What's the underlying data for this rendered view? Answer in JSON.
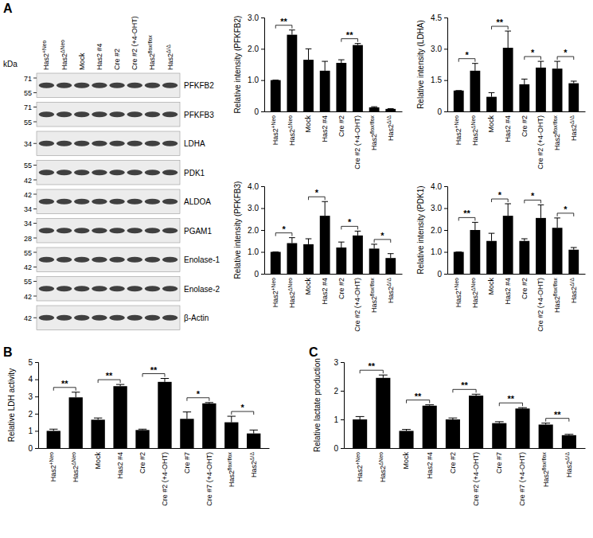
{
  "panels": [
    "A",
    "B",
    "C"
  ],
  "blot": {
    "unit": "kDa",
    "lanes": [
      "Has2+Neo",
      "Has2ΔNeo",
      "Mock",
      "Has2 #4",
      "Cre #2",
      "Cre #2 (+4-OHT)",
      "Has2flox/flox",
      "Has2Δ/Δ"
    ],
    "rows": [
      {
        "protein": "PFKFB2",
        "markers": [
          71,
          55
        ]
      },
      {
        "protein": "PFKFB3",
        "markers": [
          71,
          55
        ]
      },
      {
        "protein": "LDHA",
        "markers": [
          34
        ]
      },
      {
        "protein": "PDK1",
        "markers": [
          55,
          42
        ]
      },
      {
        "protein": "ALDOA",
        "markers": [
          42,
          34
        ]
      },
      {
        "protein": "PGAM1",
        "markers": [
          34,
          28
        ]
      },
      {
        "protein": "Enolase-1",
        "markers": [
          55,
          42
        ]
      },
      {
        "protein": "Enolase-2",
        "markers": [
          55,
          42
        ]
      },
      {
        "protein": "β-Actin",
        "markers": [
          42
        ]
      }
    ]
  },
  "chart_data": [
    {
      "type": "bar",
      "ylabel": "Relative intensity (PFKFB2)",
      "categories": [
        "Has2+Neo",
        "Has2ΔNeo",
        "Mock",
        "Has2 #4",
        "Cre #2",
        "Cre #2 (+4-OHT)",
        "Has2flox/flox",
        "Has2Δ/Δ"
      ],
      "values": [
        1.0,
        2.45,
        1.65,
        1.3,
        1.55,
        2.12,
        0.13,
        0.08
      ],
      "errors": [
        0,
        0.15,
        0.35,
        0.3,
        0.1,
        0.05,
        0.02,
        0.01
      ],
      "color": "#000000",
      "ylim": [
        0,
        3
      ],
      "yticks": [
        0,
        {
          "value": 1,
          "label": "1.0"
        },
        {
          "value": 2,
          "label": "2.0"
        },
        {
          "value": 3,
          "label": "3.0"
        }
      ],
      "annotations": [
        {
          "text": "**",
          "categories": [
            0,
            1
          ]
        },
        {
          "text": "**",
          "categories": [
            4,
            5
          ]
        }
      ]
    },
    {
      "type": "bar",
      "ylabel": "Relative intensity (LDHA)",
      "categories": [
        "Has2+Neo",
        "Has2ΔNeo",
        "Mock",
        "Has2 #4",
        "Cre #2",
        "Cre #2 (+4-OHT)",
        "Has2flox/flox",
        "Has2Δ/Δ"
      ],
      "values": [
        1.0,
        1.95,
        0.7,
        3.05,
        1.3,
        2.1,
        2.05,
        1.35
      ],
      "errors": [
        0,
        0.35,
        0.2,
        0.8,
        0.25,
        0.3,
        0.35,
        0.1
      ],
      "color": "#000000",
      "ylim": [
        0,
        4.5
      ],
      "yticks": [
        0,
        1.5,
        {
          "value": 3,
          "label": "3.0"
        },
        4.5
      ],
      "annotations": [
        {
          "text": "*",
          "categories": [
            0,
            1
          ]
        },
        {
          "text": "**",
          "categories": [
            2,
            3
          ]
        },
        {
          "text": "*",
          "categories": [
            4,
            5
          ]
        },
        {
          "text": "*",
          "categories": [
            6,
            7
          ]
        }
      ]
    },
    {
      "type": "bar",
      "ylabel": "Relative intensity (PFKFB3)",
      "categories": [
        "Has2+Neo",
        "Has2ΔNeo",
        "Mock",
        "Has2 #4",
        "Cre #2",
        "Cre #2 (+4-OHT)",
        "Has2flox/flox",
        "Has2Δ/Δ"
      ],
      "values": [
        1.0,
        1.4,
        1.35,
        2.65,
        1.2,
        1.75,
        1.15,
        0.72
      ],
      "errors": [
        0,
        0.25,
        0.25,
        0.65,
        0.25,
        0.2,
        0.2,
        0.2
      ],
      "color": "#000000",
      "ylim": [
        0,
        4
      ],
      "yticks": [
        0,
        {
          "value": 1,
          "label": "1.0"
        },
        {
          "value": 2,
          "label": "2.0"
        },
        {
          "value": 3,
          "label": "3.0"
        },
        {
          "value": 4,
          "label": "4.0"
        }
      ],
      "annotations": [
        {
          "text": "*",
          "categories": [
            0,
            1
          ]
        },
        {
          "text": "*",
          "categories": [
            2,
            3
          ]
        },
        {
          "text": "*",
          "categories": [
            4,
            5
          ]
        },
        {
          "text": "*",
          "categories": [
            6,
            7
          ]
        }
      ]
    },
    {
      "type": "bar",
      "ylabel": "Relative intensity (PDK1)",
      "categories": [
        "Has2+Neo",
        "Has2ΔNeo",
        "Mock",
        "Has2 #4",
        "Cre #2",
        "Cre #2 (+4-OHT)",
        "Has2flox/flox",
        "Has2Δ/Δ"
      ],
      "values": [
        1.0,
        2.0,
        1.5,
        2.65,
        1.5,
        2.55,
        2.1,
        1.1
      ],
      "errors": [
        0,
        0.35,
        0.35,
        0.55,
        0.1,
        0.6,
        0.45,
        0.1
      ],
      "color": "#000000",
      "ylim": [
        0,
        4
      ],
      "yticks": [
        0,
        {
          "value": 1,
          "label": "1.0"
        },
        {
          "value": 2,
          "label": "2.0"
        },
        {
          "value": 3,
          "label": "3.0"
        },
        {
          "value": 4,
          "label": "4.0"
        }
      ],
      "annotations": [
        {
          "text": "**",
          "categories": [
            0,
            1
          ]
        },
        {
          "text": "*",
          "categories": [
            2,
            3
          ]
        },
        {
          "text": "*",
          "categories": [
            4,
            5
          ]
        },
        {
          "text": "*",
          "categories": [
            6,
            7
          ]
        }
      ]
    },
    {
      "type": "bar",
      "ylabel": "Relative LDH activity",
      "categories": [
        "Has2+Neo",
        "Has2ΔNeo",
        "Mock",
        "Has2 #4",
        "Cre #2",
        "Cre #2 (+4-OHT)",
        "Cre #7",
        "Cre #7 (+4-OHT)",
        "Has2flox/flox",
        "Has2Δ/Δ"
      ],
      "values": [
        1.0,
        2.95,
        1.65,
        3.6,
        1.05,
        3.85,
        1.7,
        2.6,
        1.5,
        0.85
      ],
      "errors": [
        0.1,
        0.3,
        0.1,
        0.1,
        0.05,
        0.2,
        0.4,
        0.05,
        0.35,
        0.2
      ],
      "color": "#000000",
      "ylim": [
        0,
        5
      ],
      "yticks": [
        0,
        1,
        2,
        3,
        4,
        5
      ],
      "annotations": [
        {
          "text": "**",
          "categories": [
            0,
            1
          ]
        },
        {
          "text": "**",
          "categories": [
            2,
            3
          ]
        },
        {
          "text": "**",
          "categories": [
            4,
            5
          ]
        },
        {
          "text": "*",
          "categories": [
            6,
            7
          ]
        },
        {
          "text": "*",
          "categories": [
            8,
            9
          ]
        }
      ]
    },
    {
      "type": "bar",
      "ylabel": "Relative lactate production",
      "categories": [
        "Has2+Neo",
        "Has2ΔNeo",
        "Mock",
        "Has2 #4",
        "Cre #2",
        "Cre #2 (+4-OHT)",
        "Cre #7",
        "Cre #7 (+4-OHT)",
        "Has2flox/flox",
        "Has2Δ/Δ"
      ],
      "values": [
        1.0,
        2.45,
        0.6,
        1.48,
        1.0,
        1.83,
        0.87,
        1.38,
        0.82,
        0.45
      ],
      "errors": [
        0.1,
        0.1,
        0.05,
        0.03,
        0.05,
        0.05,
        0.05,
        0.03,
        0.05,
        0.03
      ],
      "color": "#000000",
      "ylim": [
        0,
        3
      ],
      "yticks": [
        0,
        1,
        2,
        3
      ],
      "annotations": [
        {
          "text": "**",
          "categories": [
            0,
            1
          ]
        },
        {
          "text": "**",
          "categories": [
            2,
            3
          ]
        },
        {
          "text": "**",
          "categories": [
            4,
            5
          ]
        },
        {
          "text": "**",
          "categories": [
            6,
            7
          ]
        },
        {
          "text": "**",
          "categories": [
            8,
            9
          ]
        }
      ]
    }
  ]
}
